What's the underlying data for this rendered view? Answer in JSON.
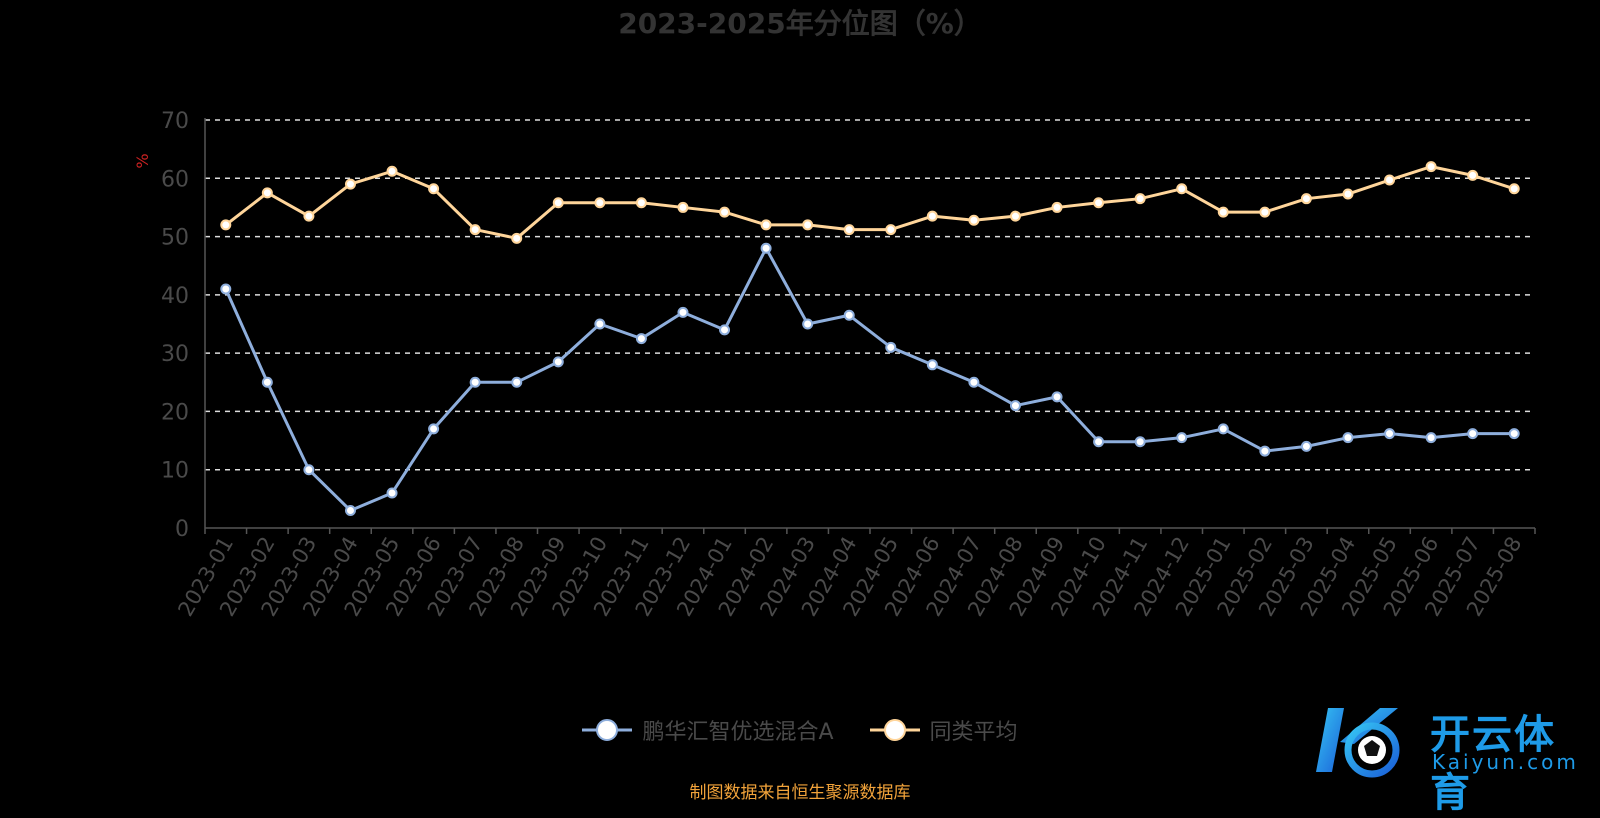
{
  "title": "2023-2025年分位图（%）",
  "source_note": "制图数据来自恒生聚源数据库",
  "watermark": {
    "cn": "开云体育",
    "en": "Kaiyun.com",
    "logo": "kaiyun-logo-icon"
  },
  "colors": {
    "fund": "#8eaedc",
    "average": "#ffd59a",
    "grid": "#dddddd",
    "axis": "#555555",
    "tick": "#4a4a4a",
    "unit": "#cc2222"
  },
  "chart_data": {
    "type": "line",
    "title": "2023-2025年分位图（%）",
    "ylabel": "%",
    "ylim": [
      0,
      70
    ],
    "yticks": [
      0,
      10,
      20,
      30,
      40,
      50,
      60,
      70
    ],
    "grid": true,
    "legend_position": "bottom",
    "categories": [
      "2023-01",
      "2023-02",
      "2023-03",
      "2023-04",
      "2023-05",
      "2023-06",
      "2023-07",
      "2023-08",
      "2023-09",
      "2023-10",
      "2023-11",
      "2023-12",
      "2024-01",
      "2024-02",
      "2024-03",
      "2024-04",
      "2024-05",
      "2024-06",
      "2024-07",
      "2024-08",
      "2024-09",
      "2024-10",
      "2024-11",
      "2024-12",
      "2025-01",
      "2025-02",
      "2025-03",
      "2025-04",
      "2025-05",
      "2025-06",
      "2025-07",
      "2025-08"
    ],
    "series": [
      {
        "name": "鹏华汇智优选混合A",
        "values": [
          41,
          25,
          10,
          3,
          6,
          17,
          25,
          25,
          28.5,
          35,
          32.5,
          37,
          34,
          48,
          35,
          36.5,
          31,
          28,
          25,
          21,
          22.5,
          14.8,
          14.8,
          15.5,
          17,
          13.2,
          14,
          15.5,
          16.2,
          15.5,
          16.2,
          16.2
        ]
      },
      {
        "name": "同类平均",
        "values": [
          52,
          57.5,
          53.5,
          59,
          61.2,
          58.2,
          51.2,
          49.7,
          55.8,
          55.8,
          55.8,
          55,
          54.2,
          52,
          52,
          51.2,
          51.2,
          53.5,
          52.8,
          53.5,
          55,
          55.8,
          56.5,
          58.2,
          54.2,
          54.2,
          56.5,
          57.3,
          59.7,
          62,
          60.5,
          58.2
        ]
      }
    ]
  }
}
